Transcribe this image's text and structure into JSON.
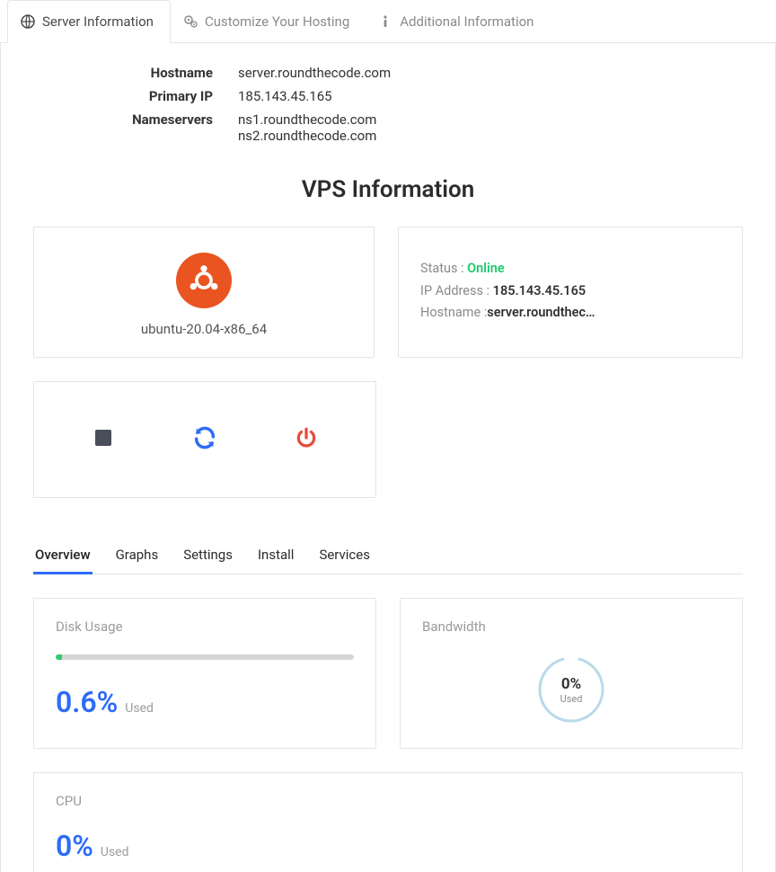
{
  "tabs": {
    "server_info": "Server Information",
    "customize": "Customize Your Hosting",
    "additional": "Additional Information"
  },
  "server": {
    "hostname_label": "Hostname",
    "hostname": "server.roundthecode.com",
    "primary_ip_label": "Primary IP",
    "primary_ip": "185.143.45.165",
    "nameservers_label": "Nameservers",
    "ns1": "ns1.roundthecode.com",
    "ns2": "ns2.roundthecode.com"
  },
  "vps": {
    "title": "VPS Information",
    "os_name": "ubuntu-20.04-x86_64",
    "os_color": "#e95420",
    "status_label": "Status : ",
    "status_value": "Online",
    "status_color": "#1ec96b",
    "ip_label": "IP Address : ",
    "ip_value": "185.143.45.165",
    "host_label": "Hostname :",
    "host_value": "server.roundthec…"
  },
  "controls": {
    "stop_color": "#4a4e5a",
    "restart_color": "#2d6cf6",
    "power_color": "#e74c3c"
  },
  "subtabs": {
    "overview": "Overview",
    "graphs": "Graphs",
    "settings": "Settings",
    "install": "Install",
    "services": "Services"
  },
  "metrics": {
    "disk": {
      "title": "Disk Usage",
      "percent_text": "0.6%",
      "percent_value": 0.6,
      "bar_fill_pct": 2,
      "used_label": "Used",
      "bar_bg": "#d6d6d6",
      "bar_fill": "#2ecc71",
      "value_color": "#2d6cf6"
    },
    "bandwidth": {
      "title": "Bandwidth",
      "percent_text": "0%",
      "percent_value": 0,
      "used_label": "Used",
      "ring_color": "#b9d9ea",
      "ring_gap_deg": 30
    },
    "cpu": {
      "title": "CPU",
      "percent_text": "0%",
      "used_label": "Used",
      "value_color": "#2d6cf6"
    }
  },
  "colors": {
    "border": "#e5e5e5",
    "muted": "#9b9b9b",
    "accent": "#2d6cf6"
  }
}
